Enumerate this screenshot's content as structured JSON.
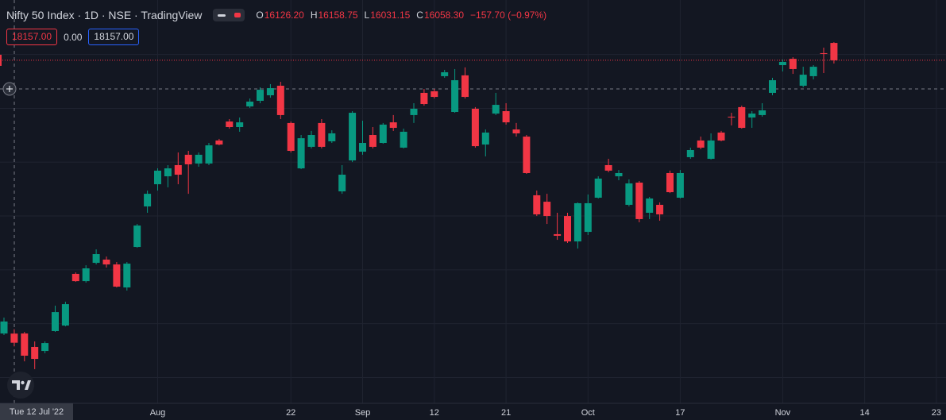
{
  "chart_data": {
    "type": "candlestick",
    "title": "Nifty 50 Index · 1D · NSE · TradingView",
    "legend": {
      "open_label": "O",
      "open": "16126.20",
      "high_label": "H",
      "high": "16158.75",
      "low_label": "L",
      "low": "16031.15",
      "close_label": "C",
      "close": "16058.30",
      "change": "−157.70 (−0.97%)"
    },
    "sell_price": "18157.00",
    "spread": "0.00",
    "buy_price": "18157.00",
    "crosshair_date": "Tue 12 Jul '22",
    "up_color": "#089981",
    "down_color": "#f23645",
    "grid": true,
    "ylim": [
      15608,
      18605
    ],
    "ygrid": [
      15800,
      16200,
      16600,
      17000,
      17400,
      17800,
      18200
    ],
    "categories": [
      null,
      null,
      null,
      null,
      null,
      null,
      null,
      null,
      null,
      null,
      null,
      null,
      null,
      null,
      null,
      "Aug",
      null,
      null,
      null,
      null,
      null,
      null,
      null,
      null,
      null,
      null,
      null,
      null,
      "22",
      null,
      null,
      null,
      null,
      null,
      null,
      "Sep",
      null,
      null,
      null,
      null,
      null,
      null,
      "12",
      null,
      null,
      null,
      null,
      null,
      null,
      "21",
      null,
      null,
      null,
      null,
      null,
      null,
      null,
      "Oct",
      null,
      null,
      null,
      null,
      null,
      null,
      null,
      null,
      "17",
      null,
      null,
      null,
      null,
      null,
      null,
      null,
      null,
      null,
      "Nov",
      null,
      null,
      null,
      null,
      null,
      null,
      null,
      "14",
      null,
      null,
      null,
      null,
      null,
      null,
      "23"
    ],
    "open": [
      16127,
      16126.2,
      16127,
      16027,
      15997,
      16145,
      16186,
      16570,
      16516,
      16652,
      16676,
      16640,
      16469,
      16770,
      17071,
      17236,
      17295,
      17378,
      17455,
      17390,
      17390,
      17561,
      17702,
      17661,
      17814,
      17856,
      17897,
      17968,
      17691,
      17354,
      17514,
      17691,
      17555,
      17183,
      17413,
      17478,
      17602,
      17543,
      17696,
      17508,
      17750,
      17915,
      17927,
      18039,
      17773,
      18045,
      17797,
      17531,
      17761,
      17779,
      17643,
      17590,
      17154,
      17106,
      16865,
      17000,
      16811,
      16882,
      17136,
      17378,
      17295,
      17083,
      17248,
      17024,
      17083,
      17319,
      17136,
      17437,
      17561,
      17425,
      17620,
      17738,
      17809,
      17732,
      17750,
      17915,
      18121,
      18168,
      17968,
      18039,
      18210,
      18286,
      null,
      null,
      null,
      null,
      null,
      null,
      null,
      null,
      null,
      null
    ],
    "high": [
      16245,
      16158.75,
      16139,
      16068,
      16068,
      16334,
      16363,
      16581,
      16634,
      16752,
      16699,
      16658,
      16658,
      16941,
      17189,
      17354,
      17378,
      17472,
      17484,
      17472,
      17543,
      17573,
      17720,
      17732,
      17873,
      17956,
      17980,
      17997,
      17702,
      17602,
      17632,
      17720,
      17637,
      17378,
      17779,
      17708,
      17661,
      17691,
      17750,
      17649,
      17838,
      17944,
      17944,
      18086,
      18092,
      18104,
      17809,
      17643,
      17915,
      17838,
      17691,
      17602,
      17189,
      17165,
      17024,
      17024,
      17101,
      17160,
      17295,
      17425,
      17342,
      17272,
      17260,
      17142,
      17101,
      17337,
      17342,
      17508,
      17590,
      17614,
      17632,
      17767,
      17820,
      17779,
      17838,
      18027,
      18163,
      18180,
      18109,
      18121,
      18251,
      18292,
      null,
      null,
      null,
      null,
      null,
      null,
      null,
      null,
      null,
      null
    ],
    "low": [
      16115,
      16031.15,
      15920,
      15862,
      15980,
      16139,
      16180,
      16511,
      16505,
      16640,
      16617,
      16469,
      16446,
      16764,
      17024,
      17189,
      17213,
      17236,
      17165,
      17366,
      17378,
      17525,
      17649,
      17626,
      17803,
      17838,
      17879,
      17720,
      17472,
      17348,
      17502,
      17502,
      17543,
      17165,
      17401,
      17455,
      17502,
      17537,
      17632,
      17502,
      17691,
      17820,
      17873,
      18027,
      17767,
      17873,
      17508,
      17443,
      17750,
      17679,
      17590,
      17313,
      17000,
      16941,
      16823,
      16800,
      16758,
      16859,
      17130,
      17325,
      17266,
      17071,
      16953,
      16977,
      16965,
      17171,
      17130,
      17425,
      17496,
      17419,
      17555,
      17673,
      17649,
      17655,
      17738,
      17897,
      18074,
      18056,
      17956,
      18015,
      18062,
      18133,
      null,
      null,
      null,
      null,
      null,
      null,
      null,
      null,
      null,
      null
    ],
    "close": [
      16216,
      16058.3,
      15962,
      15938,
      16056,
      16286,
      16345,
      16516,
      16611,
      16717,
      16640,
      16475,
      16646,
      16929,
      17165,
      17337,
      17354,
      17307,
      17384,
      17455,
      17525,
      17531,
      17661,
      17696,
      17850,
      17938,
      17950,
      17750,
      17484,
      17578,
      17602,
      17514,
      17614,
      17307,
      17767,
      17543,
      17514,
      17679,
      17655,
      17626,
      17797,
      17832,
      17885,
      18068,
      18009,
      17885,
      17519,
      17620,
      17826,
      17696,
      17614,
      17319,
      17012,
      17000,
      16853,
      16811,
      17095,
      17095,
      17278,
      17337,
      17319,
      17242,
      16977,
      17130,
      17012,
      17177,
      17319,
      17490,
      17508,
      17561,
      17561,
      17732,
      17655,
      17761,
      17785,
      18009,
      18145,
      18092,
      18050,
      18109,
      18204,
      18157,
      null,
      null,
      null,
      null,
      null,
      null,
      null,
      null,
      null,
      null
    ]
  }
}
